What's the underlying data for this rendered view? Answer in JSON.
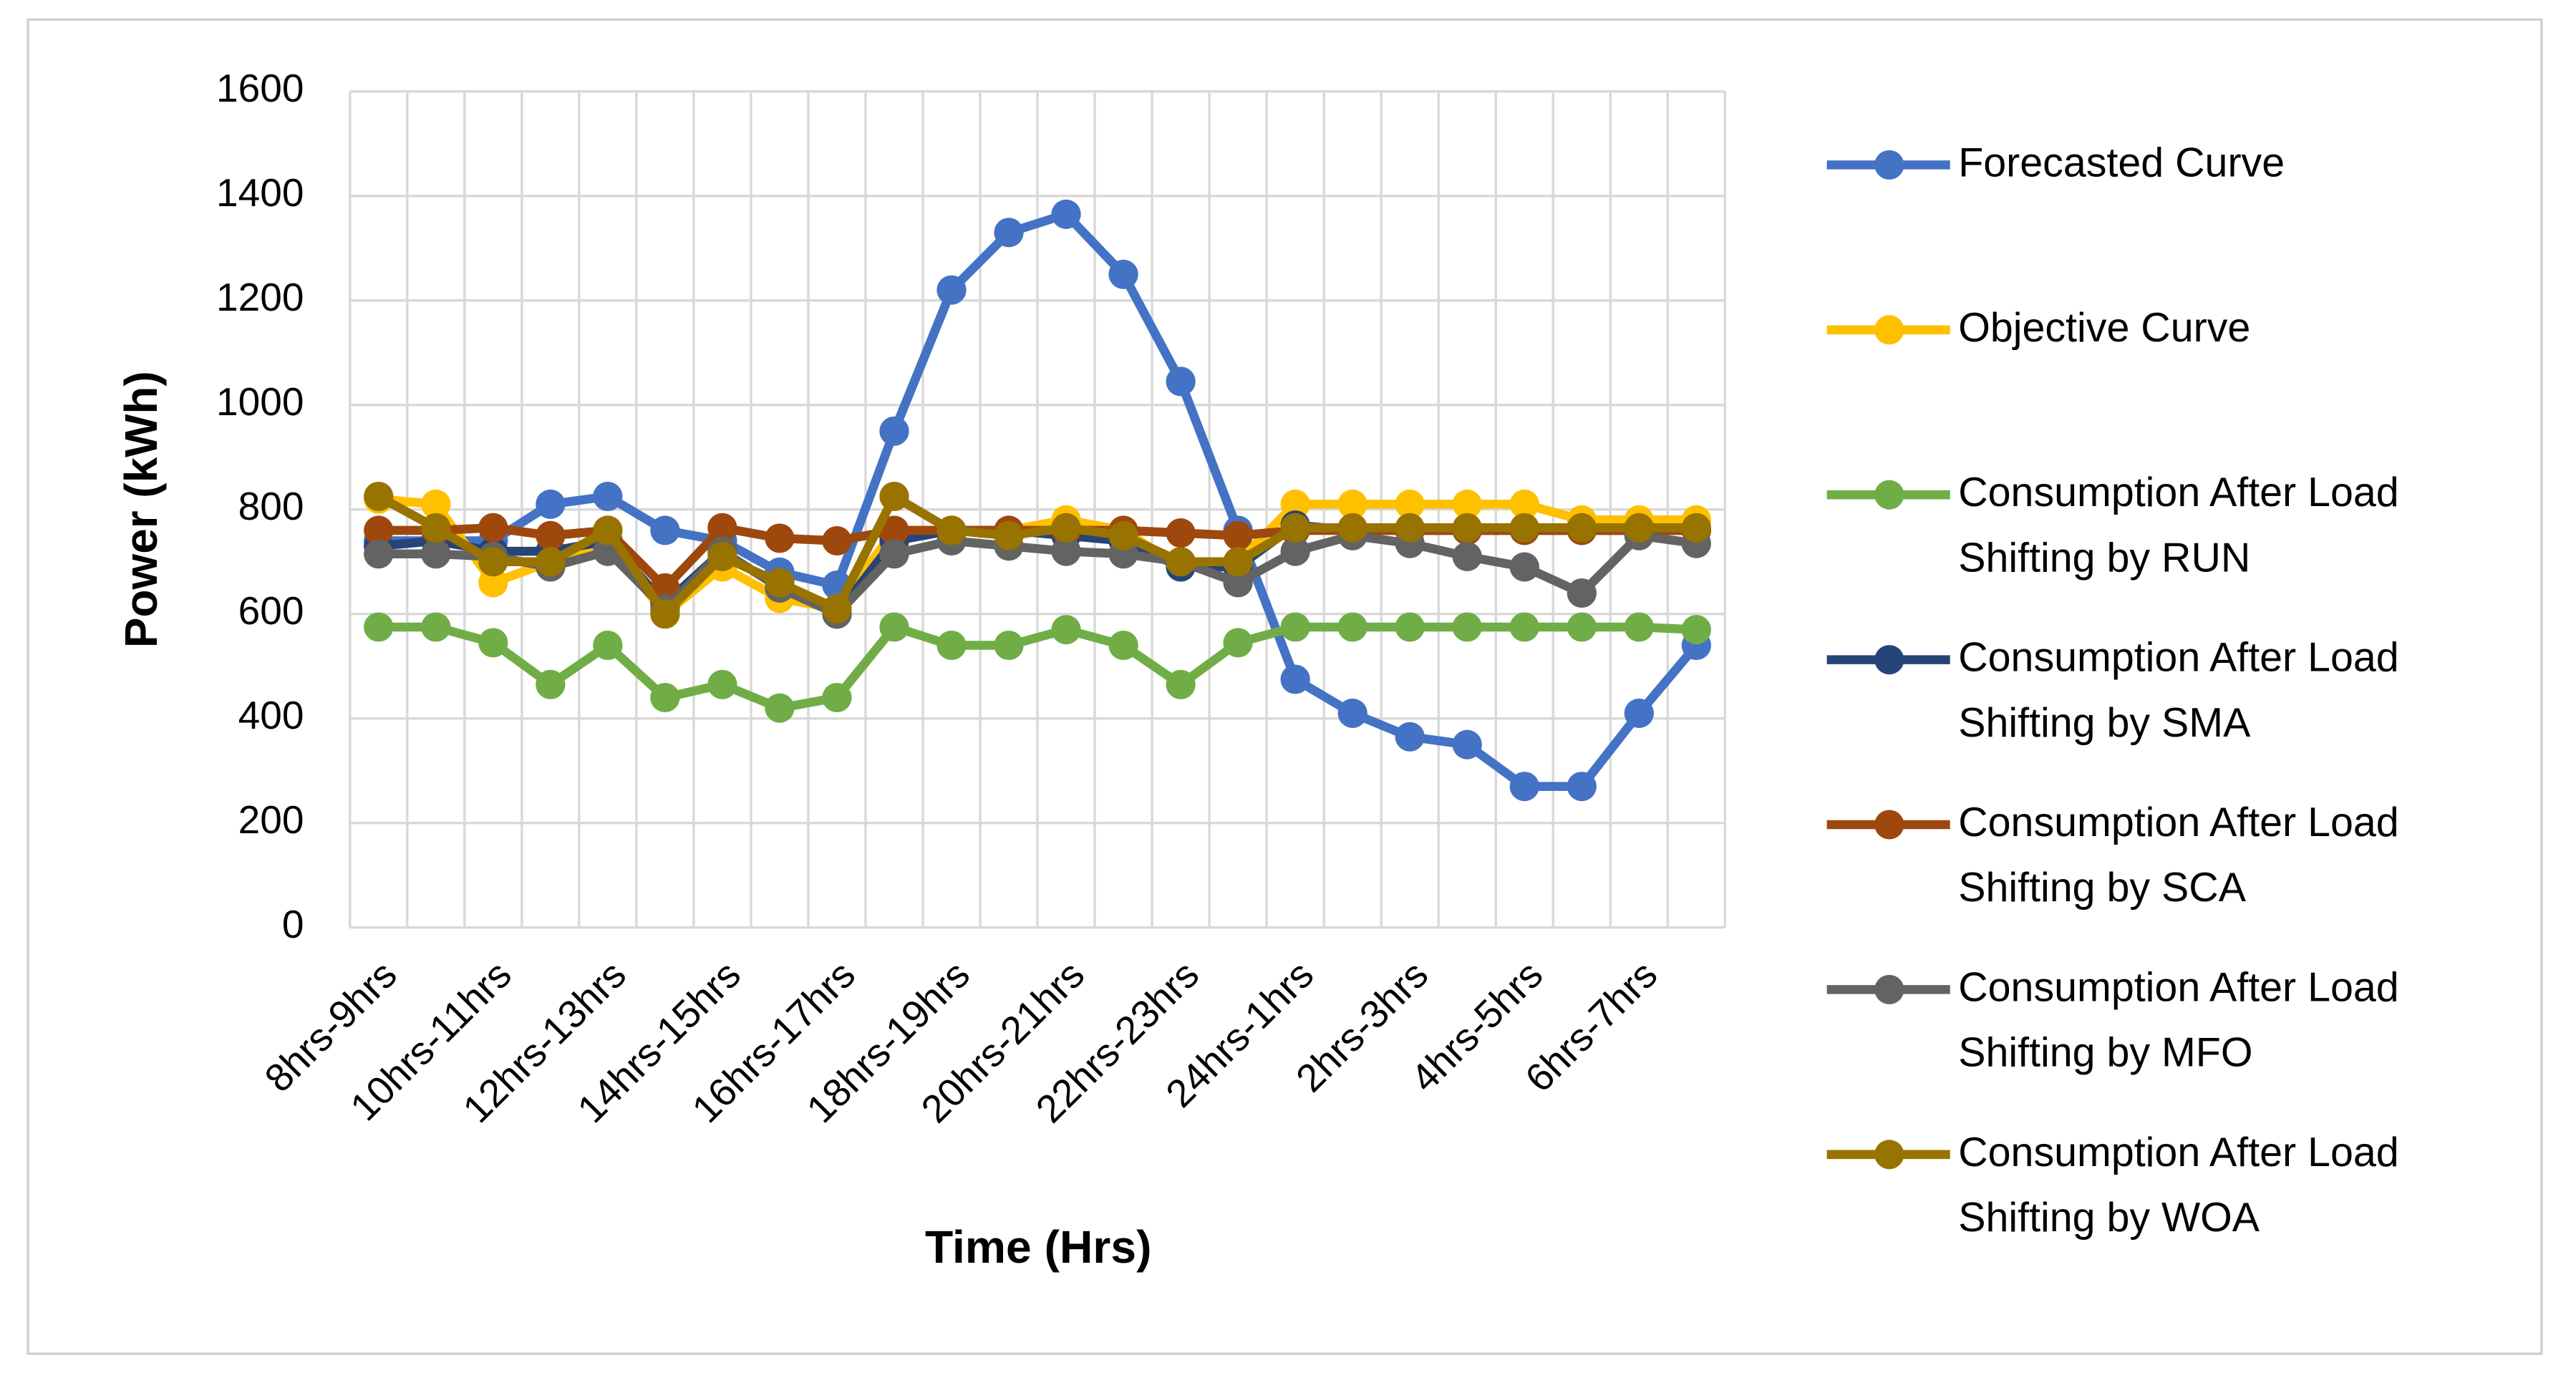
{
  "chart_data": {
    "type": "line",
    "x_label": "Time (Hrs)",
    "y_label": "Power (kWh)",
    "categories": [
      "8hrs-9hrs",
      null,
      "10hrs-11hrs",
      null,
      "12hrs-13hrs",
      null,
      "14hrs-15hrs",
      null,
      "16hrs-17hrs",
      null,
      "18hrs-19hrs",
      null,
      "20hrs-21hrs",
      null,
      "22hrs-23hrs",
      null,
      "24hrs-1hrs",
      null,
      "2hrs-3hrs",
      null,
      "4hrs-5hrs",
      null,
      "6hrs-7hrs",
      null
    ],
    "ylim": [
      0,
      1600
    ],
    "yticks": [
      0,
      200,
      400,
      600,
      800,
      1000,
      1200,
      1400,
      1600
    ],
    "grid": true,
    "legend": "right",
    "series": [
      {
        "name": "Forecasted Curve",
        "color": "#4472c4",
        "values": [
          740,
          740,
          740,
          810,
          825,
          760,
          740,
          680,
          655,
          950,
          1220,
          1330,
          1365,
          1250,
          1045,
          760,
          475,
          410,
          365,
          350,
          270,
          270,
          410,
          540
        ]
      },
      {
        "name": "Objective Curve",
        "color": "#ffc000",
        "values": [
          820,
          810,
          660,
          700,
          740,
          600,
          690,
          630,
          610,
          760,
          760,
          760,
          780,
          760,
          690,
          700,
          810,
          810,
          810,
          810,
          810,
          780,
          780,
          780
        ]
      },
      {
        "name": "Consumption After Load Shifting by RUN",
        "color": "#70ad47",
        "values": [
          575,
          575,
          545,
          465,
          540,
          440,
          465,
          420,
          440,
          575,
          540,
          540,
          570,
          540,
          465,
          545,
          575,
          575,
          575,
          575,
          575,
          575,
          575,
          570
        ]
      },
      {
        "name": "Consumption After Load Shifting by SMA",
        "color": "#264478",
        "values": [
          730,
          740,
          720,
          720,
          740,
          620,
          720,
          650,
          600,
          740,
          760,
          760,
          750,
          740,
          690,
          690,
          770,
          760,
          760,
          760,
          760,
          760,
          760,
          760
        ]
      },
      {
        "name": "Consumption After Load Shifting by SCA",
        "color": "#9e480e",
        "values": [
          760,
          760,
          765,
          750,
          760,
          650,
          765,
          745,
          740,
          760,
          760,
          760,
          760,
          760,
          755,
          750,
          760,
          760,
          760,
          760,
          760,
          760,
          760,
          760
        ]
      },
      {
        "name": "Consumption After Load Shifting by MFO",
        "color": "#636363",
        "values": [
          715,
          715,
          710,
          690,
          720,
          610,
          720,
          650,
          600,
          715,
          740,
          730,
          720,
          715,
          700,
          660,
          720,
          750,
          735,
          710,
          690,
          640,
          750,
          735
        ]
      },
      {
        "name": "Consumption After Load Shifting by WOA",
        "color": "#997300",
        "values": [
          825,
          765,
          700,
          700,
          760,
          600,
          710,
          660,
          610,
          825,
          760,
          750,
          765,
          750,
          700,
          700,
          765,
          765,
          765,
          765,
          765,
          765,
          765,
          765
        ]
      }
    ]
  }
}
